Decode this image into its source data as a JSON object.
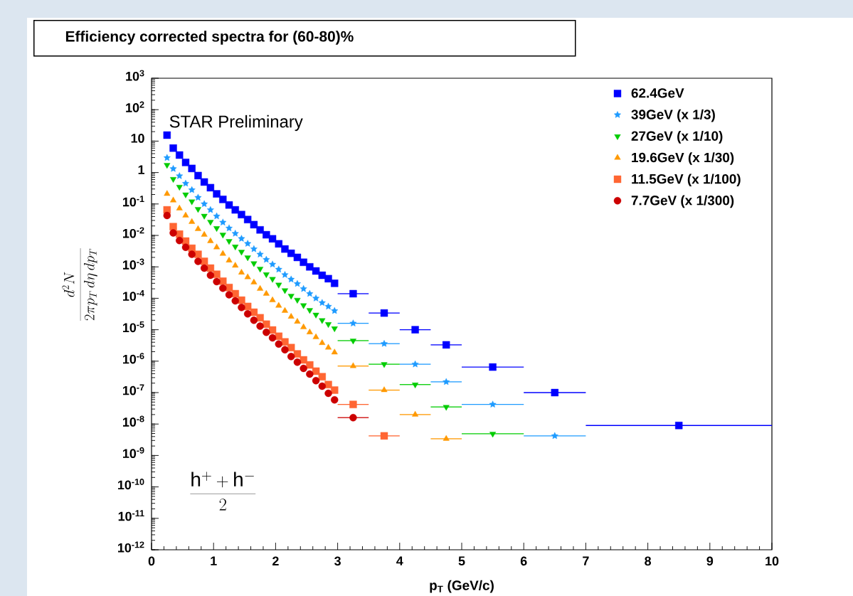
{
  "chart_data": {
    "type": "scatter",
    "title": "Efficiency corrected spectra for (60-80)%",
    "xlabel": "p$_{T}$ (GeV/c)",
    "ylabel": "\\frac{d^{2}N}{2\\pi p_{T}\\, d\\eta\\, dp_{T}}",
    "annotations": [
      "STAR Preliminary",
      "\\frac{\\mathrm{h}^{+}+\\mathrm{h}^{-}}{2}"
    ],
    "log": true,
    "legend": "top right",
    "xlim": [
      0,
      10
    ],
    "ylim": [
      1e-12,
      1000
    ],
    "xticks": [
      0,
      1,
      2,
      3,
      4,
      5,
      6,
      7,
      8,
      9,
      10
    ],
    "yticks": [
      {
        "value": 1e-12,
        "label": "10$^{-12}$"
      },
      {
        "value": 1e-11,
        "label": "10$^{-11}$"
      },
      {
        "value": 1e-10,
        "label": "10$^{-10}$"
      },
      {
        "value": 1e-09,
        "label": "10$^{-9}$"
      },
      {
        "value": 1e-08,
        "label": "10$^{-8}$"
      },
      {
        "value": 1e-07,
        "label": "10$^{-7}$"
      },
      {
        "value": 1e-06,
        "label": "10$^{-6}$"
      },
      {
        "value": 1e-05,
        "label": "10$^{-5}$"
      },
      {
        "value": 0.0001,
        "label": "10$^{-4}$"
      },
      {
        "value": 0.001,
        "label": "10$^{-3}$"
      },
      {
        "value": 0.01,
        "label": "10$^{-2}$"
      },
      {
        "value": 0.1,
        "label": "10$^{-1}$"
      },
      1,
      10,
      {
        "value": 100,
        "label": "10$^{2}$"
      },
      {
        "value": 1000,
        "label": "10$^{3}$"
      }
    ],
    "series": [
      {
        "name": "62.4GeV",
        "color": "#0000ff",
        "marker": "square",
        "x": [
          0.25,
          0.35,
          0.45,
          0.55,
          0.65,
          0.75,
          0.85,
          0.95,
          1.05,
          1.15,
          1.25,
          1.35,
          1.45,
          1.55,
          1.65,
          1.75,
          1.85,
          1.95,
          2.05,
          2.15,
          2.25,
          2.35,
          2.45,
          2.55,
          2.65,
          2.75,
          2.85,
          2.95,
          3.25,
          3.75,
          4.25,
          4.75,
          5.5,
          6.5,
          8.5
        ],
        "values": [
          15.5,
          6.0,
          3.6,
          2.1,
          1.35,
          0.8,
          0.5,
          0.33,
          0.21,
          0.14,
          0.093,
          0.065,
          0.046,
          0.032,
          0.022,
          0.015,
          0.0105,
          0.0078,
          0.0054,
          0.0037,
          0.0027,
          0.002,
          0.0014,
          0.001,
          0.00074,
          0.00054,
          0.00042,
          0.0003,
          0.00014,
          3.4e-05,
          1e-05,
          3.3e-06,
          6.5e-07,
          1e-07,
          9e-09
        ],
        "xerrors": [
          null,
          null,
          null,
          null,
          null,
          null,
          null,
          null,
          null,
          null,
          null,
          null,
          null,
          null,
          null,
          null,
          null,
          null,
          null,
          null,
          null,
          null,
          null,
          null,
          null,
          null,
          null,
          null,
          0.25,
          0.25,
          0.25,
          0.25,
          0.5,
          0.5,
          1.5
        ]
      },
      {
        "name": "39GeV (x 1/3)",
        "color": "#1e9bff",
        "marker": "star",
        "x": [
          0.25,
          0.35,
          0.45,
          0.55,
          0.65,
          0.75,
          0.85,
          0.95,
          1.05,
          1.15,
          1.25,
          1.35,
          1.45,
          1.55,
          1.65,
          1.75,
          1.85,
          1.95,
          2.05,
          2.15,
          2.25,
          2.35,
          2.45,
          2.55,
          2.65,
          2.75,
          2.85,
          2.95,
          3.25,
          3.75,
          4.25,
          4.75,
          5.5,
          6.5
        ],
        "values": [
          2.95,
          1.32,
          0.78,
          0.45,
          0.28,
          0.16,
          0.1,
          0.065,
          0.041,
          0.026,
          0.017,
          0.0115,
          0.0079,
          0.0055,
          0.0037,
          0.0025,
          0.0017,
          0.0012,
          0.00083,
          0.00056,
          0.0004,
          0.00029,
          0.0002,
          0.00014,
          0.0001,
          7.2e-05,
          5.5e-05,
          4e-05,
          1.6e-05,
          3.6e-06,
          8e-07,
          2.2e-07,
          4.2e-08,
          4.2e-09
        ],
        "xerrors": [
          null,
          null,
          null,
          null,
          null,
          null,
          null,
          null,
          null,
          null,
          null,
          null,
          null,
          null,
          null,
          null,
          null,
          null,
          null,
          null,
          null,
          null,
          null,
          null,
          null,
          null,
          null,
          null,
          0.25,
          0.25,
          0.25,
          0.25,
          0.5,
          0.5
        ]
      },
      {
        "name": "27GeV (x 1/10)",
        "color": "#00cc00",
        "marker": "triangle-down",
        "x": [
          0.25,
          0.35,
          0.45,
          0.55,
          0.65,
          0.75,
          0.85,
          0.95,
          1.05,
          1.15,
          1.25,
          1.35,
          1.45,
          1.55,
          1.65,
          1.75,
          1.85,
          1.95,
          2.05,
          2.15,
          2.25,
          2.35,
          2.45,
          2.55,
          2.65,
          2.75,
          2.85,
          2.95,
          3.25,
          3.75,
          4.25,
          4.75,
          5.5
        ],
        "values": [
          1.74,
          0.62,
          0.35,
          0.2,
          0.12,
          0.069,
          0.042,
          0.027,
          0.017,
          0.0105,
          0.0066,
          0.0044,
          0.003,
          0.002,
          0.0013,
          0.00087,
          0.00058,
          0.00041,
          0.00027,
          0.00018,
          0.00012,
          8.9e-05,
          6e-05,
          4.2e-05,
          3e-05,
          2e-05,
          1.5e-05,
          1.1e-05,
          4.5e-06,
          8e-07,
          1.8e-07,
          3.5e-08,
          4.9e-09
        ],
        "xerrors": [
          null,
          null,
          null,
          null,
          null,
          null,
          null,
          null,
          null,
          null,
          null,
          null,
          null,
          null,
          null,
          null,
          null,
          null,
          null,
          null,
          null,
          null,
          null,
          null,
          null,
          null,
          null,
          null,
          0.25,
          0.25,
          0.25,
          0.25,
          0.5
        ]
      },
      {
        "name": "19.6GeV (x 1/30)",
        "color": "#ff9900",
        "marker": "triangle",
        "x": [
          0.25,
          0.35,
          0.45,
          0.55,
          0.65,
          0.75,
          0.85,
          0.95,
          1.05,
          1.15,
          1.25,
          1.35,
          1.45,
          1.55,
          1.65,
          1.75,
          1.85,
          1.95,
          2.05,
          2.15,
          2.25,
          2.35,
          2.45,
          2.55,
          2.65,
          2.75,
          2.85,
          2.95,
          3.25,
          3.75,
          4.25,
          4.75
        ],
        "values": [
          0.21,
          0.13,
          0.072,
          0.043,
          0.027,
          0.016,
          0.0105,
          0.0066,
          0.0042,
          0.0026,
          0.0016,
          0.0011,
          0.00066,
          0.00047,
          0.00032,
          0.0002,
          0.00014,
          8.7e-05,
          5.8e-05,
          4e-05,
          2.6e-05,
          1.8e-05,
          1.2e-05,
          8.3e-06,
          5.8e-06,
          3.8e-06,
          2.7e-06,
          1.9e-06,
          7e-07,
          1.2e-07,
          2e-08,
          3.4e-09
        ],
        "xerrors": [
          null,
          null,
          null,
          null,
          null,
          null,
          null,
          null,
          null,
          null,
          null,
          null,
          null,
          null,
          null,
          null,
          null,
          null,
          null,
          null,
          null,
          null,
          null,
          null,
          null,
          null,
          null,
          null,
          0.25,
          0.25,
          0.25,
          0.25
        ]
      },
      {
        "name": "11.5GeV (x 1/100)",
        "color": "#ff6633",
        "marker": "square",
        "x": [
          0.25,
          0.35,
          0.45,
          0.55,
          0.65,
          0.75,
          0.85,
          0.95,
          1.05,
          1.15,
          1.25,
          1.35,
          1.45,
          1.55,
          1.65,
          1.75,
          1.85,
          1.95,
          2.05,
          2.15,
          2.25,
          2.35,
          2.45,
          2.55,
          2.65,
          2.75,
          2.85,
          2.95,
          3.25,
          3.75
        ],
        "values": [
          0.065,
          0.019,
          0.011,
          0.0066,
          0.0039,
          0.0025,
          0.0015,
          0.00091,
          0.00058,
          0.00035,
          0.00022,
          0.00014,
          8.7e-05,
          5.5e-05,
          3.6e-05,
          2.4e-05,
          1.5e-05,
          9.8e-06,
          6.2e-06,
          4.1e-06,
          2.7e-06,
          1.7e-06,
          1.1e-06,
          7.6e-07,
          4.8e-07,
          3.2e-07,
          1.8e-07,
          1.2e-07,
          4.2e-08,
          4.2e-09
        ],
        "xerrors": [
          null,
          null,
          null,
          null,
          null,
          null,
          null,
          null,
          null,
          null,
          null,
          null,
          null,
          null,
          null,
          null,
          null,
          null,
          null,
          null,
          null,
          null,
          null,
          null,
          null,
          null,
          null,
          null,
          0.25,
          0.25
        ]
      },
      {
        "name": "7.7GeV (x 1/300)",
        "color": "#cc0000",
        "marker": "circle",
        "x": [
          0.25,
          0.35,
          0.45,
          0.55,
          0.65,
          0.75,
          0.85,
          0.95,
          1.05,
          1.15,
          1.25,
          1.35,
          1.45,
          1.55,
          1.65,
          1.75,
          1.85,
          1.95,
          2.05,
          2.15,
          2.25,
          2.35,
          2.45,
          2.55,
          2.65,
          2.75,
          2.85,
          2.95,
          3.25
        ],
        "values": [
          0.043,
          0.012,
          0.0069,
          0.0042,
          0.0025,
          0.0015,
          0.00091,
          0.00054,
          0.00034,
          0.00021,
          0.00013,
          8.3e-05,
          5.1e-05,
          3.2e-05,
          2e-05,
          1.3e-05,
          8.3e-06,
          5.5e-06,
          3.5e-06,
          2.3e-06,
          1.4e-06,
          9.3e-07,
          5.9e-07,
          3.9e-07,
          2.4e-07,
          1.6e-07,
          9.5e-08,
          5.9e-08,
          1.6e-08
        ],
        "xerrors": [
          null,
          null,
          null,
          null,
          null,
          null,
          null,
          null,
          null,
          null,
          null,
          null,
          null,
          null,
          null,
          null,
          null,
          null,
          null,
          null,
          null,
          null,
          null,
          null,
          null,
          null,
          null,
          null,
          0.25
        ]
      }
    ]
  }
}
